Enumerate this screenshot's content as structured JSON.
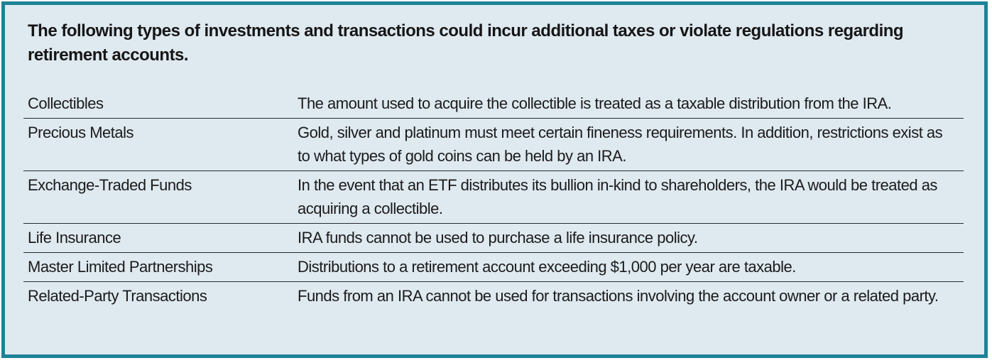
{
  "panel": {
    "intro": "The following types of investments and transactions could incur additional taxes or violate regulations regarding retirement accounts.",
    "colors": {
      "border": "#1d8396",
      "background": "#dfe9f0",
      "text": "#1b1b1b",
      "divider": "#252a33"
    },
    "table": {
      "rows": [
        {
          "term": "Collectibles",
          "description": "The amount used to acquire the collectible is treated as a taxable distribution from the IRA."
        },
        {
          "term": "Precious Metals",
          "description": "Gold, silver and platinum must meet certain fineness requirements. In addition, restrictions exist as to what types of gold coins can be held by an IRA."
        },
        {
          "term": "Exchange-Traded Funds",
          "description": "In the event that an ETF distributes its bullion in-kind to shareholders, the IRA would be treated as acquiring a collectible."
        },
        {
          "term": "Life Insurance",
          "description": "IRA funds cannot be used to purchase a life insurance policy."
        },
        {
          "term": "Master Limited Partnerships",
          "description": "Distributions to a retirement account exceeding $1,000 per year are taxable."
        },
        {
          "term": "Related-Party Transactions",
          "description": "Funds from an IRA cannot be used for transactions involving the account owner or a related party."
        }
      ]
    }
  }
}
